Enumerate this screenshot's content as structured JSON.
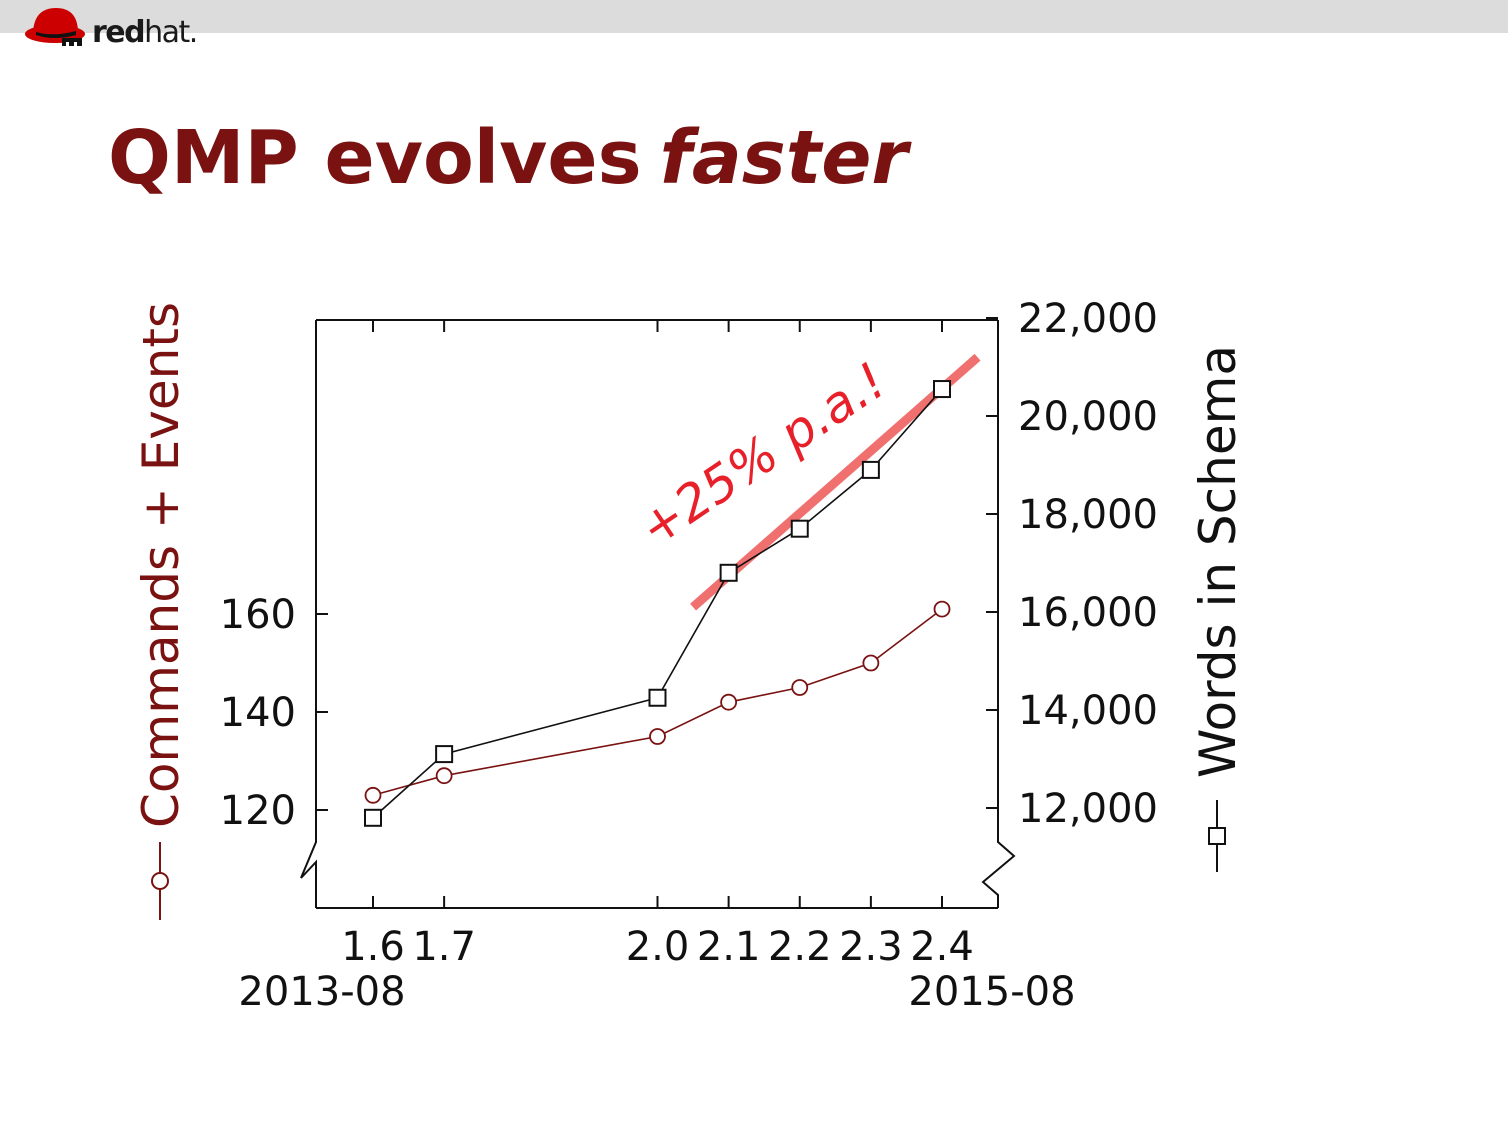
{
  "brand": {
    "word_bold": "red",
    "word_light": "hat."
  },
  "slide": {
    "title": "QMP evolves",
    "title_emphasis": "faster"
  },
  "colors": {
    "title": "#7a1212",
    "series_commands": "#7a1212",
    "series_words": "#111111",
    "trend": "#f07070",
    "annotation": "#e8202a"
  },
  "chart_data": {
    "type": "line",
    "categories": [
      "1.6",
      "1.7",
      "2.0",
      "2.1",
      "2.2",
      "2.3",
      "2.4"
    ],
    "x_position_values": [
      1.6,
      1.7,
      2.0,
      2.1,
      2.2,
      2.3,
      2.4
    ],
    "x_date_labels": {
      "first": "2013-08",
      "last": "2015-08"
    },
    "y_left": {
      "label": "Commands + Events",
      "ticks": [
        "120",
        "140",
        "160"
      ],
      "range": [
        102,
        222
      ],
      "axis_break": true
    },
    "y_right": {
      "label": "Words in Schema",
      "ticks": [
        "12,000",
        "14,000",
        "16,000",
        "18,000",
        "20,000",
        "22,000"
      ],
      "range": [
        10200,
        22200
      ],
      "axis_break": true
    },
    "series": [
      {
        "name": "Commands + Events",
        "axis": "left",
        "marker": "circle",
        "values": [
          123,
          127,
          135,
          142,
          145,
          150,
          161
        ]
      },
      {
        "name": "Words in Schema",
        "axis": "right",
        "marker": "square",
        "values": [
          11800,
          13100,
          14250,
          16800,
          17700,
          18900,
          20550
        ]
      }
    ],
    "trend_line": {
      "from": {
        "x": 2.05,
        "y": 16100
      },
      "to": {
        "x": 2.45,
        "y": 21200
      }
    },
    "annotation": "+25% p.a.!",
    "grid": false
  }
}
